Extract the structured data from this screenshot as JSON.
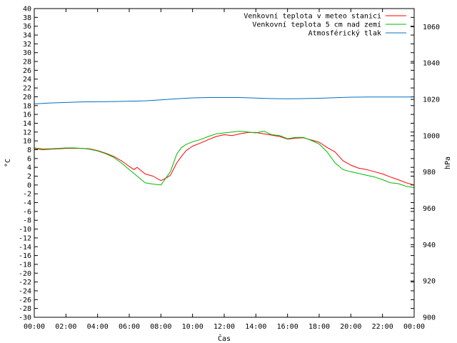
{
  "chart_data": {
    "type": "line",
    "xlabel": "Čas",
    "ylabel_left": "°C",
    "ylabel_right": "hPa",
    "x_ticks": [
      "00:00",
      "02:00",
      "04:00",
      "06:00",
      "08:00",
      "10:00",
      "12:00",
      "14:00",
      "16:00",
      "18:00",
      "20:00",
      "22:00",
      "00:00"
    ],
    "y_left_ticks": [
      40,
      38,
      36,
      34,
      32,
      30,
      28,
      26,
      24,
      22,
      20,
      18,
      16,
      14,
      12,
      10,
      8,
      6,
      4,
      2,
      0,
      -2,
      -4,
      -6,
      -8,
      -10,
      -12,
      -14,
      -16,
      -18,
      -20,
      -22,
      -24,
      -26,
      -28,
      -30
    ],
    "y_right_ticks": [
      1060,
      1040,
      1020,
      1000,
      980,
      960,
      940,
      920,
      900
    ],
    "ylim_left": [
      -30,
      40
    ],
    "ylim_right": [
      900,
      1070
    ],
    "xlim_hours": [
      0,
      24
    ],
    "legend_position": "top-right",
    "grid": false,
    "series": [
      {
        "name": "Venkovní teplota v meteo stanici",
        "color": "#ff0000",
        "axis": "left",
        "x": [
          0,
          0.5,
          1,
          1.5,
          2,
          2.5,
          3,
          3.5,
          4,
          4.5,
          5,
          5.5,
          6,
          6.3,
          6.5,
          7,
          7.5,
          8,
          8.3,
          8.6,
          9,
          9.3,
          9.6,
          10,
          10.5,
          11,
          11.5,
          12,
          12.5,
          13,
          13.5,
          14,
          14.5,
          15,
          15.5,
          16,
          16.5,
          17,
          17.5,
          18,
          18.5,
          19,
          19.5,
          20,
          20.5,
          21,
          21.5,
          22,
          22.5,
          23,
          23.5,
          24
        ],
        "values": [
          8.3,
          8.0,
          8.1,
          8.2,
          8.3,
          8.3,
          8.3,
          8.2,
          7.8,
          7.2,
          6.5,
          5.5,
          4.2,
          3.5,
          4.0,
          2.5,
          2.0,
          1.0,
          1.5,
          2.2,
          5.0,
          6.5,
          7.8,
          8.8,
          9.5,
          10.3,
          11.0,
          11.4,
          11.2,
          11.6,
          11.9,
          11.9,
          11.6,
          11.3,
          11.0,
          10.4,
          10.6,
          10.7,
          10.2,
          9.7,
          8.5,
          7.5,
          5.5,
          4.5,
          3.8,
          3.5,
          3.0,
          2.5,
          1.8,
          1.2,
          0.5,
          0.0
        ]
      },
      {
        "name": "Venkovní teplota 5 cm nad zemí",
        "color": "#00bb00",
        "axis": "left",
        "x": [
          0,
          0.5,
          1,
          1.5,
          2,
          2.5,
          3,
          3.5,
          4,
          4.5,
          5,
          5.5,
          6,
          6.5,
          7,
          7.5,
          8,
          8.3,
          8.6,
          9,
          9.3,
          9.6,
          10,
          10.5,
          11,
          11.5,
          12,
          12.5,
          13,
          13.5,
          14,
          14.5,
          15,
          15.5,
          16,
          16.5,
          17,
          17.5,
          18,
          18.5,
          19,
          19.5,
          20,
          20.5,
          21,
          21.5,
          22,
          22.5,
          23,
          23.5,
          24
        ],
        "values": [
          8.4,
          8.2,
          8.2,
          8.3,
          8.4,
          8.4,
          8.3,
          8.1,
          7.7,
          7.1,
          6.3,
          5.0,
          3.5,
          2.0,
          0.5,
          0.2,
          0.0,
          1.5,
          3.0,
          7.0,
          8.5,
          9.2,
          9.8,
          10.3,
          11.0,
          11.6,
          11.8,
          12.0,
          12.2,
          12.0,
          11.8,
          12.2,
          11.4,
          11.2,
          10.5,
          10.8,
          10.8,
          10.1,
          9.3,
          7.5,
          5.0,
          3.5,
          3.0,
          2.6,
          2.2,
          1.8,
          1.2,
          0.5,
          0.3,
          -0.3,
          -0.6
        ]
      },
      {
        "name": "Atmosférický tlak",
        "color": "#0070c0",
        "axis": "right",
        "x": [
          0,
          1,
          2,
          3,
          4,
          5,
          6,
          7,
          8,
          9,
          10,
          11,
          12,
          13,
          14,
          15,
          16,
          17,
          18,
          19,
          20,
          21,
          22,
          23,
          24
        ],
        "values": [
          1017.5,
          1018.0,
          1018.3,
          1018.6,
          1018.7,
          1018.8,
          1019.0,
          1019.2,
          1019.7,
          1020.3,
          1020.8,
          1021.0,
          1021.0,
          1021.0,
          1020.7,
          1020.4,
          1020.3,
          1020.4,
          1020.6,
          1020.9,
          1021.2,
          1021.3,
          1021.3,
          1021.3,
          1021.3
        ]
      }
    ]
  }
}
